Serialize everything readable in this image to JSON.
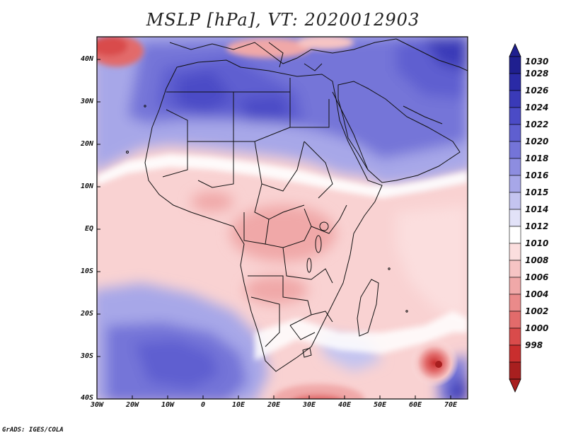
{
  "title": "MSLP [hPa], VT: 2020012903",
  "credit": "GrADS: IGES/COLA",
  "y_axis": {
    "ticks": [
      "40N",
      "30N",
      "20N",
      "10N",
      "EQ",
      "10S",
      "20S",
      "30S",
      "40S"
    ]
  },
  "x_axis": {
    "ticks": [
      "30W",
      "20W",
      "10W",
      "0",
      "10E",
      "20E",
      "30E",
      "40E",
      "50E",
      "60E",
      "70E"
    ]
  },
  "colorbar": {
    "labels": [
      "1030",
      "1028",
      "1026",
      "1024",
      "1022",
      "1020",
      "1018",
      "1016",
      "1015",
      "1014",
      "1012",
      "1010",
      "1008",
      "1006",
      "1004",
      "1002",
      "1000",
      "998"
    ],
    "colors": [
      "#1f1f8f",
      "#2a2aa6",
      "#3a3ab8",
      "#4b4bc6",
      "#5f5fd0",
      "#7474d8",
      "#8d8de0",
      "#a7a7e8",
      "#c4c4f0",
      "#e2e2f8",
      "#ffffff",
      "#fbdede",
      "#f6c4c4",
      "#f0a8a8",
      "#ea8a8a",
      "#e26b6b",
      "#d94b4b",
      "#c92e2e",
      "#a81f1f"
    ]
  },
  "map": {
    "region": "Africa",
    "lon_range": [
      -30,
      75
    ],
    "lat_range": [
      -40,
      45
    ],
    "features": [
      "Subtropical high over Sahara and Arabia",
      "Low pressure (tropical cyclone) near 67E 32S",
      "South Atlantic high"
    ]
  }
}
